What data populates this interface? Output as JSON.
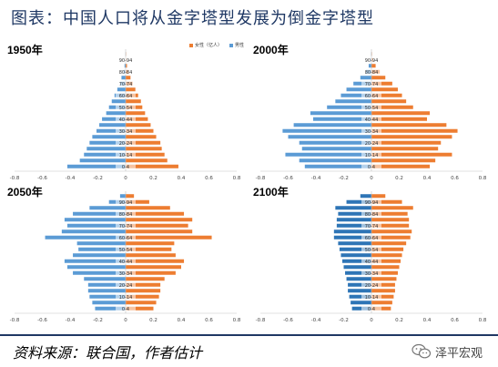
{
  "header": {
    "title": "图表：中国人口将从金字塔型发展为倒金字塔型"
  },
  "legend": {
    "female": "女性（亿人）",
    "male": "男性"
  },
  "colors": {
    "female": "#ed7d31",
    "male": "#5b9bd5",
    "male_dark": "#2e75b6",
    "title": "#1f3864"
  },
  "footer": {
    "source": "资料来源：联合国，作者估计",
    "brand": "泽平宏观"
  },
  "chart_data": [
    {
      "type": "bar",
      "year_label": "1950年",
      "categories": [
        "0-4",
        "5-9",
        "10-14",
        "15-19",
        "20-24",
        "25-29",
        "30-34",
        "35-39",
        "40-44",
        "45-49",
        "50-54",
        "55-59",
        "60-64",
        "65-69",
        "70-74",
        "75-79",
        "80-84",
        "85-89",
        "90-94",
        "95-99"
      ],
      "tick_labels": [
        "0-4",
        "",
        "10-14",
        "",
        "20-24",
        "",
        "30-34",
        "",
        "40-44",
        "",
        "50-54",
        "",
        "60-64",
        "",
        "70-74",
        "",
        "80-84",
        "",
        "90-94",
        ""
      ],
      "x_ticks": [
        "-0.8",
        "-0.6",
        "-0.4",
        "-0.2",
        "0",
        "0.2",
        "0.4",
        "0.6",
        "0.8"
      ],
      "xlim": [
        -0.8,
        0.8
      ],
      "series": [
        {
          "name": "男性",
          "values": [
            -0.42,
            -0.33,
            -0.3,
            -0.28,
            -0.26,
            -0.24,
            -0.21,
            -0.19,
            -0.17,
            -0.14,
            -0.12,
            -0.1,
            -0.08,
            -0.06,
            -0.04,
            -0.03,
            -0.015,
            -0.008,
            -0.003,
            -0.001
          ]
        },
        {
          "name": "女性（亿人）",
          "values": [
            0.38,
            0.3,
            0.28,
            0.26,
            0.25,
            0.22,
            0.2,
            0.18,
            0.16,
            0.14,
            0.12,
            0.11,
            0.09,
            0.07,
            0.05,
            0.035,
            0.02,
            0.01,
            0.004,
            0.001
          ]
        }
      ]
    },
    {
      "type": "bar",
      "year_label": "2000年",
      "categories": [
        "0-4",
        "5-9",
        "10-14",
        "15-19",
        "20-24",
        "25-29",
        "30-34",
        "35-39",
        "40-44",
        "45-49",
        "50-54",
        "55-59",
        "60-64",
        "65-69",
        "70-74",
        "75-79",
        "80-84",
        "85-89",
        "90-94",
        "95-99"
      ],
      "tick_labels": [
        "0-4",
        "",
        "10-14",
        "",
        "20-24",
        "",
        "30-34",
        "",
        "40-44",
        "",
        "50-54",
        "",
        "60-64",
        "",
        "70-74",
        "",
        "80-84",
        "",
        "90-94",
        ""
      ],
      "x_ticks": [
        "-0.8",
        "-0.6",
        "-0.4",
        "-0.2",
        "0",
        "0.2",
        "0.4",
        "0.6",
        "0.8"
      ],
      "xlim": [
        -0.8,
        0.8
      ],
      "series": [
        {
          "name": "男性",
          "values": [
            -0.48,
            -0.52,
            -0.62,
            -0.5,
            -0.52,
            -0.6,
            -0.64,
            -0.56,
            -0.42,
            -0.44,
            -0.32,
            -0.26,
            -0.22,
            -0.18,
            -0.13,
            -0.08,
            -0.04,
            -0.02,
            -0.006,
            -0.002
          ]
        },
        {
          "name": "女性（亿人）",
          "values": [
            0.42,
            0.46,
            0.58,
            0.48,
            0.5,
            0.58,
            0.62,
            0.54,
            0.4,
            0.42,
            0.3,
            0.25,
            0.22,
            0.19,
            0.15,
            0.1,
            0.06,
            0.03,
            0.01,
            0.003
          ]
        }
      ]
    },
    {
      "type": "bar",
      "year_label": "2050年",
      "categories": [
        "0-4",
        "5-9",
        "10-14",
        "15-19",
        "20-24",
        "25-29",
        "30-34",
        "35-39",
        "40-44",
        "45-49",
        "50-54",
        "55-59",
        "60-64",
        "65-69",
        "70-74",
        "75-79",
        "80-84",
        "85-89",
        "90-94",
        "95-99"
      ],
      "tick_labels": [
        "0-4",
        "",
        "10-14",
        "",
        "20-24",
        "",
        "30-34",
        "",
        "40-44",
        "",
        "50-54",
        "",
        "60-64",
        "",
        "70-74",
        "",
        "80-84",
        "",
        "90-94",
        ""
      ],
      "x_ticks": [
        "-0.8",
        "-0.6",
        "-0.4",
        "-0.2",
        "0",
        "0.2",
        "0.4",
        "0.6",
        "0.8"
      ],
      "xlim": [
        -0.8,
        0.8
      ],
      "series": [
        {
          "name": "男性",
          "values": [
            -0.22,
            -0.24,
            -0.26,
            -0.27,
            -0.27,
            -0.3,
            -0.38,
            -0.42,
            -0.44,
            -0.38,
            -0.34,
            -0.35,
            -0.58,
            -0.46,
            -0.42,
            -0.44,
            -0.38,
            -0.26,
            -0.12,
            -0.04
          ]
        },
        {
          "name": "女性（亿人）",
          "values": [
            0.2,
            0.22,
            0.24,
            0.25,
            0.25,
            0.28,
            0.36,
            0.4,
            0.42,
            0.36,
            0.33,
            0.35,
            0.62,
            0.48,
            0.45,
            0.48,
            0.42,
            0.32,
            0.17,
            0.06
          ]
        }
      ]
    },
    {
      "type": "bar",
      "year_label": "2100年",
      "categories": [
        "0-4",
        "5-9",
        "10-14",
        "15-19",
        "20-24",
        "25-29",
        "30-34",
        "35-39",
        "40-44",
        "45-49",
        "50-54",
        "55-59",
        "60-64",
        "65-69",
        "70-74",
        "75-79",
        "80-84",
        "85-89",
        "90-94",
        "95-99"
      ],
      "tick_labels": [
        "0-4",
        "",
        "10-14",
        "",
        "20-24",
        "",
        "30-34",
        "",
        "40-44",
        "",
        "50-54",
        "",
        "60-64",
        "",
        "70-74",
        "",
        "80-84",
        "",
        "90-94",
        ""
      ],
      "x_ticks": [
        "-0.8",
        "-0.6",
        "-0.4",
        "-0.2",
        "0",
        "0.2",
        "0.4",
        "0.6",
        "0.8"
      ],
      "xlim": [
        -0.8,
        0.8
      ],
      "series": [
        {
          "name": "男性",
          "values": [
            -0.14,
            -0.15,
            -0.16,
            -0.17,
            -0.17,
            -0.18,
            -0.19,
            -0.2,
            -0.21,
            -0.22,
            -0.23,
            -0.24,
            -0.27,
            -0.27,
            -0.25,
            -0.25,
            -0.24,
            -0.26,
            -0.18,
            -0.08
          ]
        },
        {
          "name": "女性（亿人）",
          "values": [
            0.14,
            0.15,
            0.16,
            0.17,
            0.17,
            0.18,
            0.19,
            0.2,
            0.21,
            0.22,
            0.23,
            0.25,
            0.28,
            0.29,
            0.27,
            0.27,
            0.26,
            0.3,
            0.22,
            0.1
          ]
        }
      ]
    }
  ]
}
